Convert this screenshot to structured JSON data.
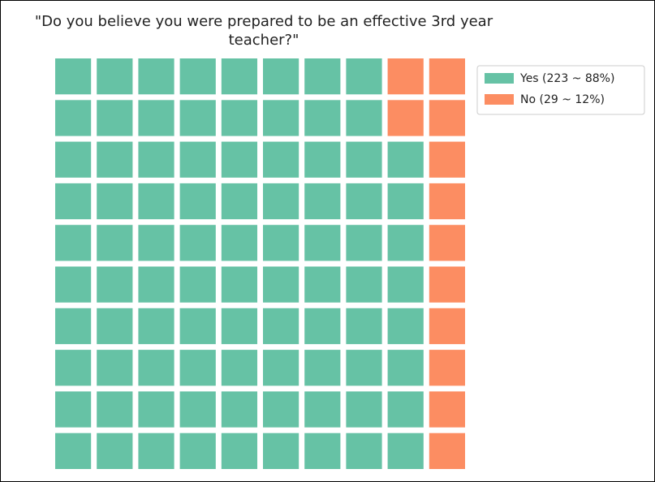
{
  "chart_data": {
    "type": "waffle",
    "title": "\"Do you believe you were prepared to be an effective 3rd year teacher?\"",
    "categories": [
      "Yes (223 ~ 88%)",
      "No (29 ~ 12%)"
    ],
    "values": [
      88,
      12
    ],
    "colors": [
      "#66c2a5",
      "#fc8d62"
    ],
    "legend": "upper right"
  }
}
